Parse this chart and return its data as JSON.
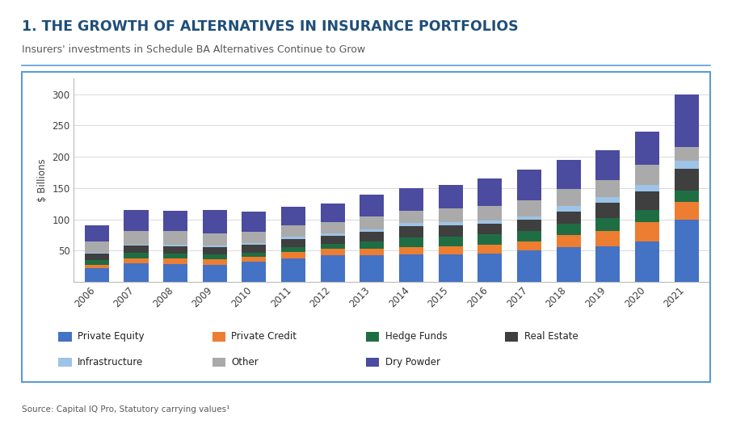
{
  "title": "1. THE GROWTH OF ALTERNATIVES IN INSURANCE PORTFOLIOS",
  "subtitle": "Insurers' investments in Schedule BA Alternatives Continue to Grow",
  "ylabel": "$ Billions",
  "source": "Source: Capital IQ Pro, Statutory carrying values¹",
  "years": [
    2006,
    2007,
    2008,
    2009,
    2010,
    2011,
    2012,
    2013,
    2014,
    2015,
    2016,
    2017,
    2018,
    2019,
    2020,
    2021
  ],
  "series": {
    "Private Equity": [
      22,
      30,
      28,
      27,
      32,
      38,
      43,
      43,
      44,
      44,
      45,
      50,
      55,
      57,
      65,
      100
    ],
    "Private Credit": [
      5,
      8,
      10,
      9,
      8,
      10,
      10,
      10,
      12,
      13,
      14,
      15,
      20,
      25,
      30,
      28
    ],
    "Hedge Funds": [
      8,
      8,
      7,
      8,
      7,
      8,
      8,
      12,
      15,
      16,
      17,
      17,
      18,
      20,
      20,
      18
    ],
    "Real Estate": [
      10,
      12,
      12,
      12,
      13,
      13,
      13,
      15,
      18,
      17,
      17,
      18,
      20,
      25,
      30,
      35
    ],
    "Infrastructure": [
      2,
      2,
      2,
      2,
      2,
      3,
      3,
      4,
      5,
      5,
      5,
      5,
      8,
      8,
      10,
      12
    ],
    "Other": [
      18,
      22,
      22,
      20,
      18,
      18,
      18,
      20,
      20,
      22,
      23,
      25,
      27,
      28,
      32,
      22
    ],
    "Dry Powder": [
      25,
      33,
      33,
      37,
      33,
      30,
      30,
      36,
      36,
      38,
      44,
      50,
      47,
      47,
      53,
      85
    ]
  },
  "colors": {
    "Private Equity": "#4472C4",
    "Private Credit": "#ED7D31",
    "Hedge Funds": "#1F6E43",
    "Real Estate": "#3F3F3F",
    "Infrastructure": "#9DC3E6",
    "Other": "#AAAAAA",
    "Dry Powder": "#4B4BA0"
  },
  "ylim": [
    0,
    325
  ],
  "yticks": [
    0,
    50,
    100,
    150,
    200,
    250,
    300
  ],
  "background_color": "#FFFFFF",
  "chart_bg": "#FFFFFF",
  "border_color": "#5B9BD5",
  "title_color": "#1F4E79",
  "subtitle_color": "#595959",
  "grid_color": "#D9D9D9"
}
